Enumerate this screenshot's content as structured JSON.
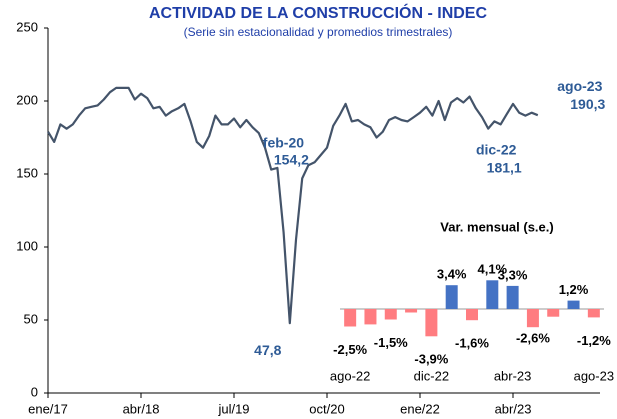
{
  "chart_data": [
    {
      "type": "line",
      "title": "ACTIVIDAD DE LA CONSTRUCCIÓN - INDEC",
      "subtitle": "(Serie sin estacionalidad y promedios trimestrales)",
      "categories": [
        "ene/17",
        null,
        null,
        null,
        null,
        null,
        null,
        null,
        null,
        null,
        null,
        null,
        null,
        null,
        null,
        "abr/18",
        null,
        null,
        null,
        null,
        null,
        null,
        null,
        null,
        null,
        null,
        null,
        null,
        null,
        null,
        "jul/19",
        null,
        null,
        null,
        null,
        null,
        null,
        null,
        null,
        null,
        null,
        null,
        null,
        null,
        null,
        "oct/20",
        null,
        null,
        null,
        null,
        null,
        null,
        null,
        null,
        null,
        null,
        null,
        null,
        null,
        null,
        "ene/22",
        null,
        null,
        null,
        null,
        null,
        null,
        null,
        null,
        null,
        null,
        null,
        null,
        null,
        null,
        "abr/23",
        null,
        null,
        null,
        null
      ],
      "series": [
        {
          "name": "Actividad de la construcción",
          "color": "#44546a",
          "values": [
            179,
            172,
            184,
            181,
            184,
            190,
            195,
            196,
            197,
            201,
            206,
            209,
            209,
            209,
            201,
            205,
            202,
            195,
            196,
            190,
            193,
            195,
            198,
            186,
            172,
            168,
            176,
            190,
            184,
            184,
            188,
            182,
            187,
            182,
            178,
            168,
            153,
            154.2,
            110,
            47.8,
            105,
            147,
            156,
            158,
            163,
            168,
            183,
            190,
            198,
            186,
            187,
            184,
            182,
            175,
            179,
            187,
            189,
            187,
            186,
            189,
            192,
            196,
            190,
            200,
            187,
            199,
            202,
            199,
            203,
            195,
            189,
            181.1,
            186,
            184,
            191,
            198,
            192,
            190,
            192,
            190.3
          ],
          "value_labels": [
            null,
            null,
            null,
            null,
            null,
            null,
            null,
            null,
            null,
            null,
            null,
            null,
            null,
            null,
            null,
            null,
            null,
            null,
            null,
            null,
            null,
            null,
            null,
            null,
            null,
            null,
            null,
            null,
            null,
            null,
            null,
            null,
            null,
            null,
            null,
            null,
            null,
            "154,2",
            null,
            "47,8",
            null,
            null,
            null,
            null,
            null,
            null,
            null,
            null,
            null,
            null,
            null,
            null,
            null,
            null,
            null,
            null,
            null,
            null,
            null,
            null,
            null,
            null,
            null,
            null,
            null,
            null,
            null,
            null,
            null,
            null,
            null,
            "181,1",
            null,
            null,
            null,
            null,
            null,
            null,
            null,
            "190,3"
          ],
          "point_labels": [
            null,
            null,
            null,
            null,
            null,
            null,
            null,
            null,
            null,
            null,
            null,
            null,
            null,
            null,
            null,
            null,
            null,
            null,
            null,
            null,
            null,
            null,
            null,
            null,
            null,
            null,
            null,
            null,
            null,
            null,
            null,
            null,
            null,
            null,
            null,
            null,
            null,
            "feb-20",
            null,
            null,
            null,
            null,
            null,
            null,
            null,
            null,
            null,
            null,
            null,
            null,
            null,
            null,
            null,
            null,
            null,
            null,
            null,
            null,
            null,
            null,
            null,
            null,
            null,
            null,
            null,
            null,
            null,
            null,
            null,
            null,
            null,
            "dic-22",
            null,
            null,
            null,
            null,
            null,
            null,
            null,
            "ago-23"
          ]
        }
      ],
      "ylim": [
        0,
        250
      ],
      "yticks": [
        0,
        50,
        100,
        150,
        200,
        250
      ],
      "grid": false
    },
    {
      "type": "bar",
      "title": "Var. mensual (s.e.)",
      "categories": [
        "ago-22",
        null,
        null,
        null,
        "dic-22",
        null,
        null,
        null,
        "abr-23",
        null,
        null,
        null,
        "ago-23"
      ],
      "values": [
        -2.5,
        -2.2,
        -1.5,
        -0.5,
        -3.9,
        3.4,
        -1.6,
        4.1,
        3.3,
        -2.6,
        -1.1,
        1.2,
        -1.2
      ],
      "value_labels": [
        "-2,5%",
        null,
        "-1,5%",
        null,
        "-3,9%",
        "3,4%",
        "-1,6%",
        "4,1%",
        "3,3%",
        "-2,6%",
        null,
        "1,2%",
        "-1,2%"
      ],
      "positive_color": "#4472c4",
      "negative_color": "#ff7c80",
      "ylim": [
        -4.5,
        5
      ]
    }
  ]
}
